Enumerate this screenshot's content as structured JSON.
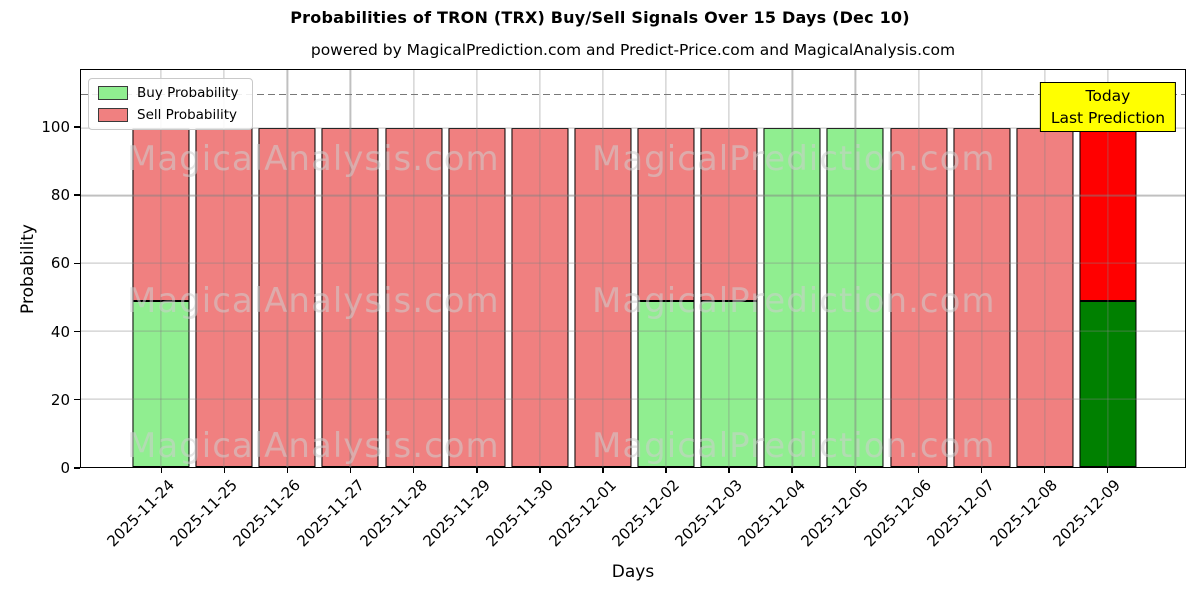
{
  "title": "Probabilities of TRON (TRX) Buy/Sell Signals Over 15 Days (Dec 10)",
  "subtitle": "powered by MagicalPrediction.com and Predict-Price.com and MagicalAnalysis.com",
  "chart_data": {
    "type": "bar",
    "stacked": true,
    "title": "Probabilities of TRON (TRX) Buy/Sell Signals Over 15 Days (Dec 10)",
    "xlabel": "Days",
    "ylabel": "Probability",
    "ylim": [
      0,
      117
    ],
    "yticks": [
      0,
      20,
      40,
      60,
      80,
      100
    ],
    "grid": true,
    "legend_position": "upper left",
    "categories": [
      "2025-11-24",
      "2025-11-25",
      "2025-11-26",
      "2025-11-27",
      "2025-11-28",
      "2025-11-29",
      "2025-11-30",
      "2025-12-01",
      "2025-12-02",
      "2025-12-03",
      "2025-12-04",
      "2025-12-05",
      "2025-12-06",
      "2025-12-07",
      "2025-12-08",
      "2025-12-09"
    ],
    "series": [
      {
        "name": "Buy Probability",
        "color": "#90ee90",
        "today_color": "#008000",
        "values": [
          49,
          0,
          0,
          0,
          0,
          0,
          0,
          0,
          49,
          49,
          100,
          100,
          0,
          0,
          0,
          49
        ]
      },
      {
        "name": "Sell Probability",
        "color": "#f08080",
        "today_color": "#ff0000",
        "values": [
          51,
          100,
          100,
          100,
          100,
          100,
          100,
          100,
          51,
          51,
          0,
          0,
          100,
          100,
          100,
          51
        ]
      }
    ],
    "today_index": 15,
    "dashed_line_y": 110,
    "bar_edge_color": "#000000"
  },
  "annotation": {
    "lines": [
      "Today",
      "Last Prediction"
    ],
    "bg_color": "#ffff00",
    "border_color": "#000000"
  },
  "watermarks": {
    "color": "rgba(205,205,205,0.55)",
    "rows": [
      {
        "left": "MagicalAnalysis.com",
        "right": "MagicalPrediction.com"
      },
      {
        "left": "MagicalAnalysis.com",
        "right": "MagicalPrediction.com"
      },
      {
        "left": "MagicalAnalysis.com",
        "right": "MagicalPrediction.com"
      }
    ]
  }
}
